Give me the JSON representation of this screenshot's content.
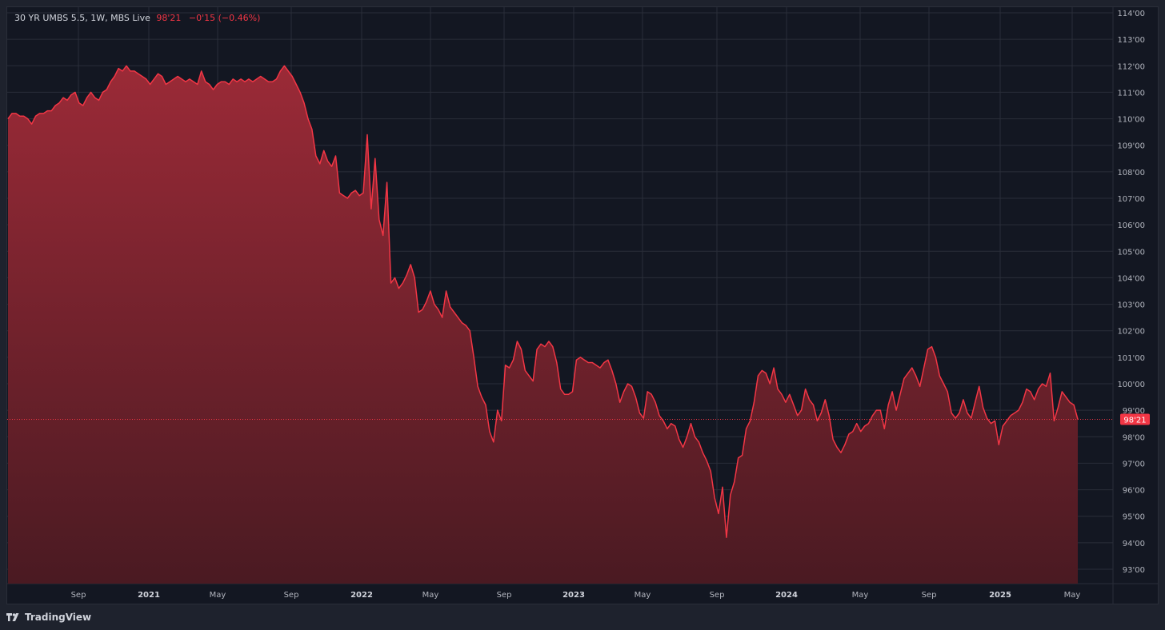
{
  "legend": {
    "symbol": "30 YR UMBS 5.5, 1W, MBS Live",
    "price": "98'21",
    "change": "−0'15 (−0.46%)"
  },
  "colors": {
    "background": "#131722",
    "grid": "#2a2e39",
    "line": "#f23645",
    "area_top": "#9b2a37",
    "area_bottom": "#4a1a22",
    "text": "#b2b5be"
  },
  "brand": {
    "label": "TradingView",
    "icon": "tradingview-logo-icon"
  },
  "chart_data": {
    "type": "area",
    "x_labels": [
      "Sep",
      "2021",
      "May",
      "Sep",
      "2022",
      "May",
      "Sep",
      "2023",
      "May",
      "Sep",
      "2024",
      "May",
      "Sep",
      "2025",
      "May"
    ],
    "y_tick_labels": [
      "93'00",
      "94'00",
      "95'00",
      "96'00",
      "97'00",
      "98'00",
      "99'00",
      "100'00",
      "101'00",
      "102'00",
      "103'00",
      "104'00",
      "105'00",
      "106'00",
      "107'00",
      "108'00",
      "109'00",
      "110'00",
      "111'00",
      "112'00",
      "113'00",
      "114'00"
    ],
    "ylim": [
      92.5,
      114.0
    ],
    "current_value": 98.656,
    "current_label": "98'21",
    "grid": true,
    "values": [
      110.0,
      110.2,
      110.2,
      110.1,
      110.1,
      110.0,
      109.8,
      110.1,
      110.2,
      110.2,
      110.3,
      110.3,
      110.5,
      110.6,
      110.8,
      110.7,
      110.9,
      111.0,
      110.6,
      110.5,
      110.8,
      111.0,
      110.8,
      110.7,
      111.0,
      111.1,
      111.4,
      111.6,
      111.9,
      111.8,
      112.0,
      111.8,
      111.8,
      111.7,
      111.6,
      111.5,
      111.3,
      111.5,
      111.7,
      111.6,
      111.3,
      111.4,
      111.5,
      111.6,
      111.5,
      111.4,
      111.5,
      111.4,
      111.3,
      111.8,
      111.4,
      111.3,
      111.1,
      111.3,
      111.4,
      111.4,
      111.3,
      111.5,
      111.4,
      111.5,
      111.4,
      111.5,
      111.4,
      111.5,
      111.6,
      111.5,
      111.4,
      111.4,
      111.5,
      111.8,
      112.0,
      111.8,
      111.6,
      111.3,
      111.0,
      110.6,
      110.0,
      109.6,
      108.6,
      108.3,
      108.8,
      108.4,
      108.2,
      108.6,
      107.2,
      107.1,
      107.0,
      107.2,
      107.3,
      107.1,
      107.2,
      109.4,
      106.6,
      108.5,
      106.2,
      105.6,
      107.6,
      103.8,
      104.0,
      103.6,
      103.8,
      104.1,
      104.5,
      104.0,
      102.7,
      102.8,
      103.1,
      103.5,
      103.0,
      102.8,
      102.5,
      103.5,
      102.9,
      102.7,
      102.5,
      102.3,
      102.2,
      102.0,
      101.0,
      99.9,
      99.5,
      99.2,
      98.2,
      97.8,
      99.0,
      98.6,
      100.7,
      100.6,
      100.9,
      101.6,
      101.3,
      100.5,
      100.3,
      100.1,
      101.3,
      101.5,
      101.4,
      101.6,
      101.4,
      100.8,
      99.8,
      99.6,
      99.6,
      99.7,
      100.9,
      101.0,
      100.9,
      100.8,
      100.8,
      100.7,
      100.6,
      100.8,
      100.9,
      100.5,
      100.0,
      99.3,
      99.7,
      100.0,
      99.9,
      99.5,
      98.9,
      98.7,
      99.7,
      99.6,
      99.3,
      98.8,
      98.6,
      98.3,
      98.5,
      98.4,
      97.9,
      97.6,
      98.0,
      98.5,
      98.0,
      97.8,
      97.4,
      97.1,
      96.7,
      95.7,
      95.1,
      96.1,
      94.2,
      95.8,
      96.3,
      97.2,
      97.3,
      98.3,
      98.6,
      99.3,
      100.3,
      100.5,
      100.4,
      100.0,
      100.6,
      99.8,
      99.6,
      99.3,
      99.6,
      99.2,
      98.8,
      99.0,
      99.8,
      99.4,
      99.2,
      98.6,
      98.9,
      99.4,
      98.8,
      97.9,
      97.6,
      97.4,
      97.7,
      98.1,
      98.2,
      98.5,
      98.2,
      98.4,
      98.5,
      98.8,
      99.0,
      99.0,
      98.3,
      99.2,
      99.7,
      99.0,
      99.6,
      100.2,
      100.4,
      100.6,
      100.3,
      99.9,
      100.6,
      101.3,
      101.4,
      101.0,
      100.3,
      100.0,
      99.7,
      98.9,
      98.7,
      98.9,
      99.4,
      98.9,
      98.7,
      99.3,
      99.9,
      99.1,
      98.7,
      98.5,
      98.6,
      97.7,
      98.4,
      98.6,
      98.8,
      98.9,
      99.0,
      99.3,
      99.8,
      99.7,
      99.4,
      99.8,
      100.0,
      99.9,
      100.4,
      98.6,
      99.1,
      99.7,
      99.5,
      99.3,
      99.2,
      98.656
    ]
  }
}
